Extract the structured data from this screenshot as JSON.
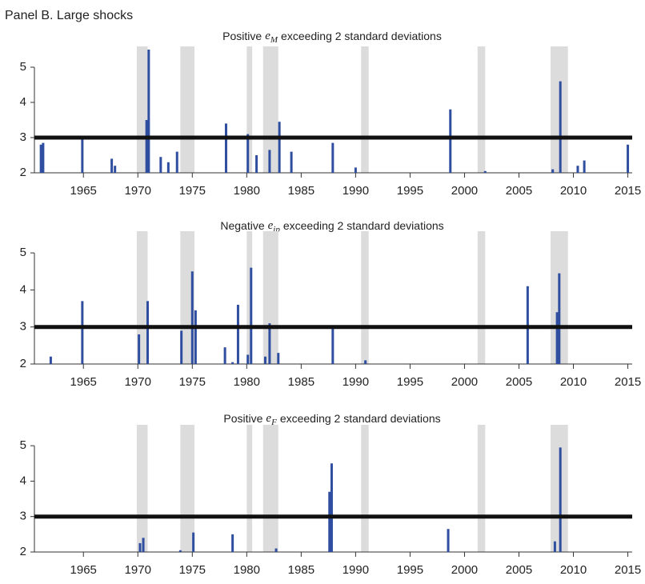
{
  "title": "Panel B. Large shocks",
  "chart_data": [
    {
      "type": "bar",
      "title_prefix": "Positive",
      "title_symbol": "e",
      "title_subscript": "M",
      "title_suffix": "exceeding 2 standard deviations",
      "x": [
        1961.1,
        1961.3,
        1964.9,
        1967.6,
        1967.9,
        1970.8,
        1971.0,
        1972.1,
        1972.8,
        1973.6,
        1978.1,
        1980.1,
        1980.9,
        1982.1,
        1983.0,
        1984.1,
        1987.9,
        1990.0,
        1998.7,
        2001.9,
        2008.1,
        2008.8,
        2010.4,
        2011.0,
        2015.0
      ],
      "values": [
        2.8,
        2.85,
        2.95,
        2.4,
        2.2,
        3.5,
        5.5,
        2.45,
        2.3,
        2.6,
        3.4,
        3.1,
        2.5,
        2.65,
        3.45,
        2.6,
        2.85,
        2.15,
        3.8,
        2.05,
        2.1,
        4.6,
        2.2,
        2.35,
        2.8
      ],
      "color": "#2f4ea0",
      "shade_color": "#dcdcdc",
      "hline": 3,
      "shaded_ranges": [
        [
          1969.9,
          1970.9
        ],
        [
          1973.9,
          1975.2
        ],
        [
          1980.0,
          1980.5
        ],
        [
          1981.5,
          1982.9
        ],
        [
          1990.5,
          1991.2
        ],
        [
          2001.2,
          2001.9
        ],
        [
          2007.9,
          2009.5
        ]
      ],
      "xlim": [
        1960.5,
        2015.4
      ],
      "ylim": [
        2,
        5.5
      ],
      "xticks": [
        1965,
        1970,
        1975,
        1980,
        1985,
        1990,
        1995,
        2000,
        2005,
        2010,
        2015
      ],
      "yticks": [
        2,
        3,
        4,
        5
      ]
    },
    {
      "type": "bar",
      "title_prefix": "Negative",
      "title_symbol": "e",
      "title_subscript": "ip",
      "title_suffix": "exceeding 2 standard deviations",
      "x": [
        1962.0,
        1964.9,
        1970.1,
        1970.9,
        1974.0,
        1975.0,
        1975.3,
        1978.0,
        1978.7,
        1979.2,
        1980.1,
        1980.4,
        1981.7,
        1982.1,
        1982.9,
        1987.9,
        1990.9,
        2005.8,
        2008.5,
        2008.7
      ],
      "values": [
        2.2,
        3.7,
        2.8,
        3.7,
        2.9,
        4.5,
        3.45,
        2.45,
        2.05,
        3.6,
        2.25,
        4.6,
        2.2,
        3.1,
        2.3,
        2.95,
        2.1,
        4.1,
        3.4,
        4.45
      ],
      "color": "#2f4ea0",
      "shade_color": "#dcdcdc",
      "hline": 3,
      "shaded_ranges": [
        [
          1969.9,
          1970.9
        ],
        [
          1973.9,
          1975.2
        ],
        [
          1980.0,
          1980.5
        ],
        [
          1981.5,
          1982.9
        ],
        [
          1990.5,
          1991.2
        ],
        [
          2001.2,
          2001.9
        ],
        [
          2007.9,
          2009.5
        ]
      ],
      "xlim": [
        1960.5,
        2015.4
      ],
      "ylim": [
        2,
        5.5
      ],
      "xticks": [
        1965,
        1970,
        1975,
        1980,
        1985,
        1990,
        1995,
        2000,
        2005,
        2010,
        2015
      ],
      "yticks": [
        2,
        3,
        4,
        5
      ]
    },
    {
      "type": "bar",
      "title_prefix": "Positive",
      "title_symbol": "e",
      "title_subscript": "F",
      "title_suffix": "exceeding 2 standard deviations",
      "x": [
        1970.2,
        1970.5,
        1973.9,
        1975.1,
        1978.7,
        1982.7,
        1987.6,
        1987.8,
        1998.5,
        2008.3,
        2008.8
      ],
      "values": [
        2.25,
        2.4,
        2.05,
        2.55,
        2.5,
        2.1,
        3.7,
        4.5,
        2.65,
        2.3,
        4.95
      ],
      "color": "#2f4ea0",
      "shade_color": "#dcdcdc",
      "hline": 3,
      "shaded_ranges": [
        [
          1969.9,
          1970.9
        ],
        [
          1973.9,
          1975.2
        ],
        [
          1980.0,
          1980.5
        ],
        [
          1981.5,
          1982.9
        ],
        [
          1990.5,
          1991.2
        ],
        [
          2001.2,
          2001.9
        ],
        [
          2007.9,
          2009.5
        ]
      ],
      "xlim": [
        1960.5,
        2015.4
      ],
      "ylim": [
        2,
        5.5
      ],
      "xticks": [
        1965,
        1970,
        1975,
        1980,
        1985,
        1990,
        1995,
        2000,
        2005,
        2010,
        2015
      ],
      "yticks": [
        2,
        3,
        4,
        5
      ]
    }
  ]
}
